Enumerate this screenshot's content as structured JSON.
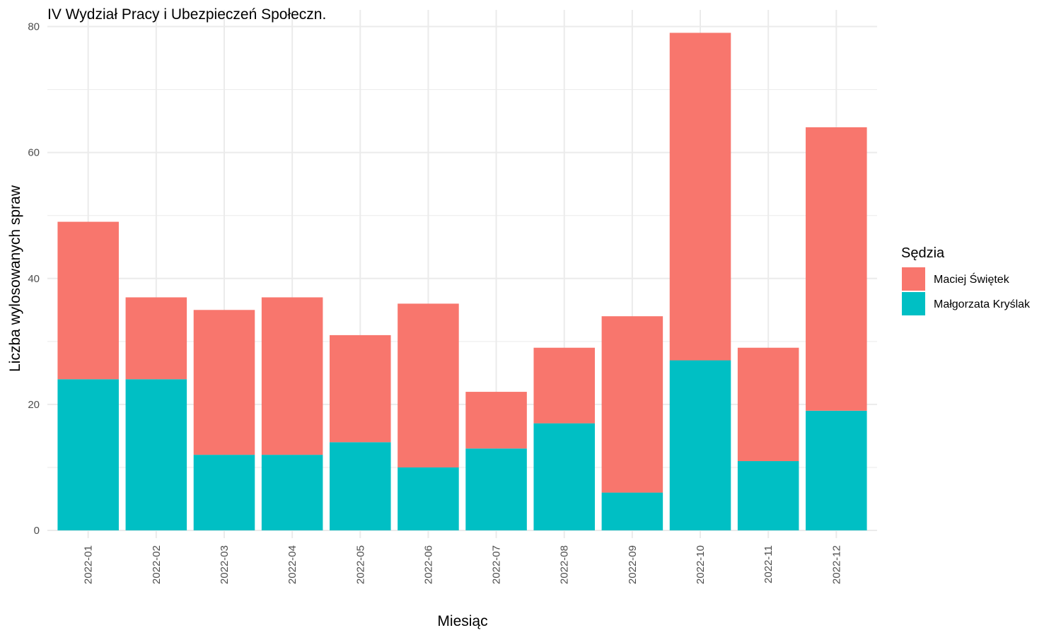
{
  "chart_data": {
    "type": "bar",
    "stacked": true,
    "title": "IV Wydział Pracy i Ubezpieczeń Społeczn.",
    "xlabel": "Miesiąc",
    "ylabel": "Liczba wylosowanych spraw",
    "ylim": [
      0,
      80
    ],
    "y_ticks": [
      0,
      20,
      40,
      60,
      80
    ],
    "grid": true,
    "legend_position": "right",
    "legend_title": "Sędzia",
    "categories": [
      "2022-01",
      "2022-02",
      "2022-03",
      "2022-04",
      "2022-05",
      "2022-06",
      "2022-07",
      "2022-08",
      "2022-09",
      "2022-10",
      "2022-11",
      "2022-12"
    ],
    "series": [
      {
        "name": "Maciej Świętek",
        "color": "#F8766D",
        "values": [
          25,
          13,
          23,
          25,
          17,
          26,
          9,
          12,
          28,
          52,
          18,
          45
        ]
      },
      {
        "name": "Małgorzata Kryślak",
        "color": "#00BFC4",
        "values": [
          24,
          24,
          12,
          12,
          14,
          10,
          13,
          17,
          6,
          27,
          11,
          19
        ]
      }
    ]
  }
}
